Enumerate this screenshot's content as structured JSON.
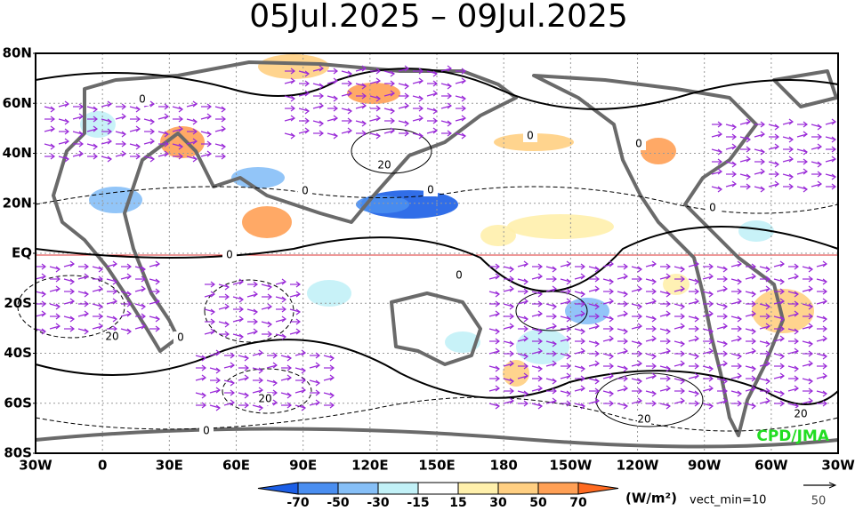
{
  "title": "05Jul.2025 – 09Jul.2025",
  "lat_labels": [
    "80N",
    "60N",
    "40N",
    "20N",
    "EQ",
    "20S",
    "40S",
    "60S",
    "80S"
  ],
  "lon_labels": [
    "30W",
    "0",
    "30E",
    "60E",
    "90E",
    "120E",
    "150E",
    "180",
    "150W",
    "120W",
    "90W",
    "60W",
    "30W"
  ],
  "colorbar": {
    "labels": [
      "-70",
      "-50",
      "-30",
      "-15",
      "15",
      "30",
      "50",
      "70"
    ],
    "colors": [
      "#1b5ee6",
      "#4a8ef0",
      "#86bff7",
      "#c2f1f7",
      "#ffffff",
      "#fff0ac",
      "#ffcf82",
      "#ffa055",
      "#ff6a20"
    ]
  },
  "unit": "(W/m²)",
  "vect_min": "vect_min=10",
  "ref_vector": "50",
  "credit": "CPD/JMA",
  "contour_labels": [
    "0",
    "0",
    "0",
    "20",
    "0",
    "0",
    "0",
    "0",
    "0",
    "20",
    "0",
    "20",
    "20",
    "20",
    "0"
  ]
}
